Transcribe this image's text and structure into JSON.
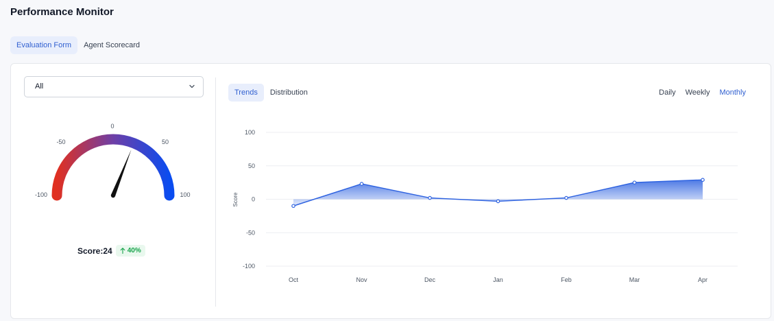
{
  "page": {
    "title": "Performance Monitor"
  },
  "tabs": [
    {
      "label": "Evaluation Form",
      "active": true
    },
    {
      "label": "Agent Scorecard",
      "active": false
    }
  ],
  "filter": {
    "selected": "All"
  },
  "gauge": {
    "min": -100,
    "max": 100,
    "ticks": [
      "-100",
      "-50",
      "0",
      "50",
      "100"
    ],
    "value": 24,
    "colors": {
      "low": "#e03021",
      "mid": "#6e3fa6",
      "high": "#0a4cf0"
    }
  },
  "score": {
    "label": "Score:24",
    "change": "40%",
    "direction": "up"
  },
  "view_tabs": [
    {
      "label": "Trends",
      "active": true
    },
    {
      "label": "Distribution",
      "active": false
    }
  ],
  "period_tabs": [
    {
      "label": "Daily",
      "active": false
    },
    {
      "label": "Weekly",
      "active": false
    },
    {
      "label": "Monthly",
      "active": true
    }
  ],
  "chart_data": {
    "type": "area",
    "categories": [
      "Oct",
      "Nov",
      "Dec",
      "Jan",
      "Feb",
      "Mar",
      "Apr"
    ],
    "values": [
      -10,
      23,
      2,
      -3,
      2,
      25,
      29
    ],
    "ylabel": "Score",
    "yticks": [
      "100",
      "50",
      "0",
      "-50",
      "-100"
    ],
    "ylim": [
      -100,
      100
    ],
    "grid": true,
    "color": "#2f63e0"
  }
}
